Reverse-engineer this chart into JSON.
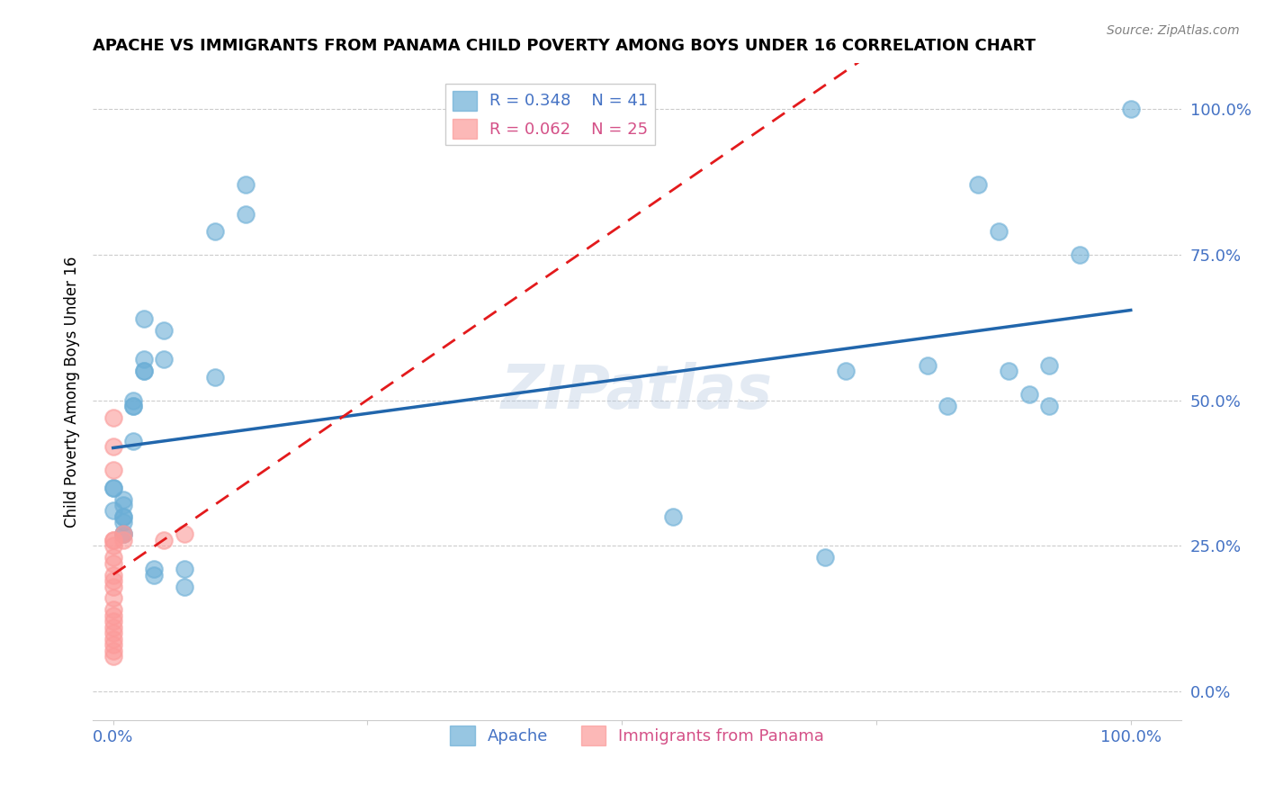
{
  "title": "APACHE VS IMMIGRANTS FROM PANAMA CHILD POVERTY AMONG BOYS UNDER 16 CORRELATION CHART",
  "source": "Source: ZipAtlas.com",
  "ylabel": "Child Poverty Among Boys Under 16",
  "xlim": [
    -0.02,
    1.05
  ],
  "ylim": [
    -0.05,
    1.08
  ],
  "xticks": [
    0.0,
    0.25,
    0.5,
    0.75,
    1.0
  ],
  "xtick_labels": [
    "0.0%",
    "",
    "",
    "",
    "100.0%"
  ],
  "ytick_labels": [
    "0.0%",
    "25.0%",
    "50.0%",
    "75.0%",
    "100.0%"
  ],
  "yticks": [
    0.0,
    0.25,
    0.5,
    0.75,
    1.0
  ],
  "apache_R": 0.348,
  "apache_N": 41,
  "panama_R": 0.062,
  "panama_N": 25,
  "apache_color": "#6baed6",
  "panama_color": "#fb9a99",
  "trendline_apache_color": "#2166ac",
  "trendline_panama_color": "#e31a1c",
  "legend_apache_text_color": "#4472C4",
  "legend_panama_text_color": "#d45087",
  "watermark": "ZIPatlas",
  "apache_x": [
    0.0,
    0.0,
    0.0,
    0.01,
    0.01,
    0.01,
    0.01,
    0.01,
    0.01,
    0.01,
    0.02,
    0.02,
    0.02,
    0.02,
    0.03,
    0.03,
    0.03,
    0.03,
    0.04,
    0.04,
    0.05,
    0.05,
    0.07,
    0.07,
    0.1,
    0.1,
    0.13,
    0.13,
    0.55,
    0.7,
    0.72,
    0.8,
    0.82,
    0.85,
    0.87,
    0.88,
    0.9,
    0.92,
    0.92,
    0.95,
    1.0
  ],
  "apache_y": [
    0.35,
    0.35,
    0.31,
    0.3,
    0.32,
    0.27,
    0.27,
    0.33,
    0.29,
    0.3,
    0.43,
    0.49,
    0.49,
    0.5,
    0.55,
    0.57,
    0.55,
    0.64,
    0.21,
    0.2,
    0.57,
    0.62,
    0.21,
    0.18,
    0.54,
    0.79,
    0.87,
    0.82,
    0.3,
    0.23,
    0.55,
    0.56,
    0.49,
    0.87,
    0.79,
    0.55,
    0.51,
    0.49,
    0.56,
    0.75,
    1.0
  ],
  "panama_x": [
    0.0,
    0.0,
    0.0,
    0.0,
    0.0,
    0.0,
    0.0,
    0.0,
    0.0,
    0.0,
    0.0,
    0.0,
    0.0,
    0.0,
    0.0,
    0.0,
    0.0,
    0.0,
    0.0,
    0.0,
    0.0,
    0.01,
    0.01,
    0.05,
    0.07
  ],
  "panama_y": [
    0.47,
    0.42,
    0.38,
    0.26,
    0.26,
    0.25,
    0.23,
    0.22,
    0.2,
    0.19,
    0.18,
    0.16,
    0.14,
    0.13,
    0.12,
    0.11,
    0.1,
    0.09,
    0.08,
    0.07,
    0.06,
    0.26,
    0.27,
    0.26,
    0.27
  ]
}
